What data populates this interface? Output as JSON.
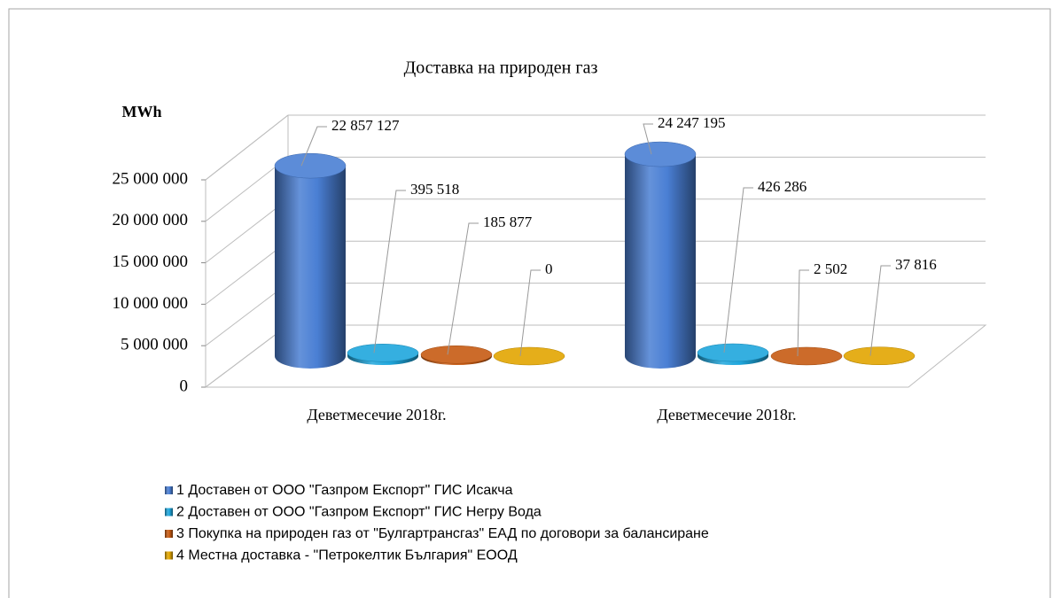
{
  "chart_data": {
    "type": "bar3d",
    "title": "Доставка на природен газ",
    "ylabel": "MWh",
    "categories": [
      "Деветмесечие 2018г.",
      "Деветмесечие 2018г."
    ],
    "series": [
      {
        "name": "1 Доставен от ООО \"Газпром Експорт\" ГИС Исакча",
        "color": "#4a7fd4",
        "values": [
          22857127,
          24247195
        ],
        "value_labels": [
          "22 857 127",
          "24 247 195"
        ]
      },
      {
        "name": "2 Доставен от ООО \"Газпром Експорт\" ГИС Негру Вода",
        "color": "#1ea6dc",
        "values": [
          395518,
          426286
        ],
        "value_labels": [
          "395 518",
          "426 286"
        ]
      },
      {
        "name": "3 Покупка на природен газ от \"Булгартрансгаз\" ЕАД по договори за балансиране",
        "color": "#c65a12",
        "values": [
          185877,
          2502
        ],
        "value_labels": [
          "185 877",
          "2 502"
        ]
      },
      {
        "name": "4 Местна доставка - \"Петрокелтик България\" ЕООД",
        "color": "#e2a500",
        "values": [
          0,
          37816
        ],
        "value_labels": [
          "0",
          "37 816"
        ]
      }
    ],
    "ylim": [
      0,
      25000000
    ],
    "yticks": [
      0,
      {
        "value": 5000000,
        "label": "5 000 000"
      },
      {
        "value": 10000000,
        "label": "10 000 000"
      },
      {
        "value": 15000000,
        "label": "15 000 000"
      },
      {
        "value": 20000000,
        "label": "20 000 000"
      },
      {
        "value": 25000000,
        "label": "25 000 000"
      }
    ],
    "grid": true,
    "legend": "bottom-left"
  }
}
